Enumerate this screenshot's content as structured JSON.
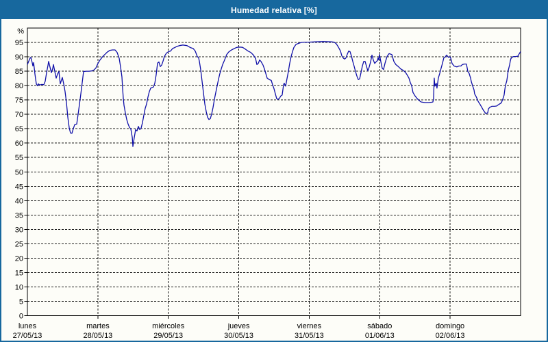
{
  "window": {
    "title": "Humedad relativa [%]",
    "title_bar_color": "#17689e",
    "border_color": "#17689e",
    "background_color": "#fdfdf8"
  },
  "colors": {
    "frame": "#000000",
    "grid": "#1a1a1a",
    "text": "#000000",
    "line": "#0f0fa8"
  },
  "chart_data": {
    "type": "line",
    "title": "Humedad relativa [%]",
    "ylabel": "%",
    "ylim": [
      0,
      100
    ],
    "y_ticks": [
      0,
      5,
      10,
      15,
      20,
      25,
      30,
      35,
      40,
      45,
      50,
      55,
      60,
      65,
      70,
      75,
      80,
      85,
      90,
      95
    ],
    "grid": {
      "horizontal": "dashed",
      "vertical": "dashed at day boundaries"
    },
    "legend": "none",
    "x_axis": {
      "unit": "day",
      "range_days": [
        0,
        7
      ],
      "days": [
        {
          "name": "lunes",
          "date": "27/05/13"
        },
        {
          "name": "martes",
          "date": "28/05/13"
        },
        {
          "name": "miércoles",
          "date": "29/05/13"
        },
        {
          "name": "jueves",
          "date": "30/05/13"
        },
        {
          "name": "viernes",
          "date": "31/05/13"
        },
        {
          "name": "sábado",
          "date": "01/06/13"
        },
        {
          "name": "domingo",
          "date": "02/06/13"
        }
      ]
    },
    "series": [
      {
        "name": "Humedad relativa",
        "color": "#0f0fa8",
        "points": [
          [
            0.0,
            87.3
          ],
          [
            0.019,
            88.5
          ],
          [
            0.039,
            89.6
          ],
          [
            0.049,
            89.8
          ],
          [
            0.068,
            88.0
          ],
          [
            0.078,
            86.8
          ],
          [
            0.088,
            88.0
          ],
          [
            0.107,
            84.0
          ],
          [
            0.126,
            80.6
          ],
          [
            0.146,
            79.9
          ],
          [
            0.156,
            80.6
          ],
          [
            0.175,
            80.2
          ],
          [
            0.204,
            80.4
          ],
          [
            0.233,
            80.3
          ],
          [
            0.253,
            81.5
          ],
          [
            0.272,
            84.5
          ],
          [
            0.292,
            87.0
          ],
          [
            0.301,
            88.4
          ],
          [
            0.321,
            86.4
          ],
          [
            0.34,
            84.5
          ],
          [
            0.36,
            86.0
          ],
          [
            0.369,
            87.3
          ],
          [
            0.389,
            84.9
          ],
          [
            0.408,
            82.6
          ],
          [
            0.428,
            84.0
          ],
          [
            0.447,
            84.9
          ],
          [
            0.467,
            80.6
          ],
          [
            0.486,
            82.1
          ],
          [
            0.496,
            82.8
          ],
          [
            0.515,
            80.6
          ],
          [
            0.535,
            77.9
          ],
          [
            0.554,
            74.1
          ],
          [
            0.574,
            69.0
          ],
          [
            0.593,
            65.4
          ],
          [
            0.612,
            63.5
          ],
          [
            0.632,
            63.4
          ],
          [
            0.651,
            65.0
          ],
          [
            0.671,
            66.4
          ],
          [
            0.7,
            66.6
          ],
          [
            0.719,
            70.0
          ],
          [
            0.739,
            73.5
          ],
          [
            0.758,
            77.1
          ],
          [
            0.778,
            81.0
          ],
          [
            0.797,
            84.9
          ],
          [
            0.836,
            85.0
          ],
          [
            0.875,
            85.0
          ],
          [
            0.914,
            85.1
          ],
          [
            0.943,
            85.4
          ],
          [
            0.972,
            86.1
          ],
          [
            1.001,
            87.7
          ],
          [
            1.031,
            88.9
          ],
          [
            1.069,
            90.1
          ],
          [
            1.099,
            90.8
          ],
          [
            1.137,
            91.7
          ],
          [
            1.167,
            92.2
          ],
          [
            1.206,
            92.4
          ],
          [
            1.244,
            92.4
          ],
          [
            1.274,
            91.5
          ],
          [
            1.303,
            89.5
          ],
          [
            1.322,
            86.5
          ],
          [
            1.342,
            83.0
          ],
          [
            1.351,
            79.0
          ],
          [
            1.361,
            75.5
          ],
          [
            1.371,
            73.2
          ],
          [
            1.39,
            70.5
          ],
          [
            1.41,
            68.2
          ],
          [
            1.429,
            66.6
          ],
          [
            1.449,
            65.5
          ],
          [
            1.468,
            64.9
          ],
          [
            1.488,
            62.0
          ],
          [
            1.497,
            58.8
          ],
          [
            1.517,
            61.9
          ],
          [
            1.536,
            64.7
          ],
          [
            1.556,
            64.2
          ],
          [
            1.575,
            65.8
          ],
          [
            1.594,
            64.7
          ],
          [
            1.614,
            65.2
          ],
          [
            1.633,
            67.1
          ],
          [
            1.653,
            69.7
          ],
          [
            1.672,
            72.1
          ],
          [
            1.692,
            73.6
          ],
          [
            1.711,
            76.0
          ],
          [
            1.731,
            77.9
          ],
          [
            1.75,
            79.1
          ],
          [
            1.789,
            79.5
          ],
          [
            1.808,
            80.8
          ],
          [
            1.828,
            83.8
          ],
          [
            1.847,
            87.8
          ],
          [
            1.867,
            88.2
          ],
          [
            1.886,
            86.6
          ],
          [
            1.906,
            87.1
          ],
          [
            1.925,
            88.5
          ],
          [
            1.944,
            90.1
          ],
          [
            1.974,
            91.3
          ],
          [
            2.003,
            91.8
          ],
          [
            2.032,
            92.0
          ],
          [
            2.061,
            92.9
          ],
          [
            2.09,
            93.2
          ],
          [
            2.12,
            93.6
          ],
          [
            2.158,
            93.9
          ],
          [
            2.207,
            94.1
          ],
          [
            2.265,
            93.9
          ],
          [
            2.314,
            93.2
          ],
          [
            2.353,
            92.9
          ],
          [
            2.382,
            92.0
          ],
          [
            2.411,
            90.1
          ],
          [
            2.431,
            89.6
          ],
          [
            2.44,
            88.5
          ],
          [
            2.46,
            85.5
          ],
          [
            2.479,
            81.5
          ],
          [
            2.499,
            77.5
          ],
          [
            2.518,
            73.6
          ],
          [
            2.538,
            70.9
          ],
          [
            2.557,
            69.0
          ],
          [
            2.576,
            68.2
          ],
          [
            2.596,
            68.5
          ],
          [
            2.615,
            70.1
          ],
          [
            2.635,
            72.4
          ],
          [
            2.654,
            75.2
          ],
          [
            2.674,
            77.6
          ],
          [
            2.693,
            79.9
          ],
          [
            2.713,
            82.3
          ],
          [
            2.732,
            84.2
          ],
          [
            2.751,
            85.8
          ],
          [
            2.771,
            87.3
          ],
          [
            2.79,
            88.4
          ],
          [
            2.81,
            89.6
          ],
          [
            2.829,
            90.8
          ],
          [
            2.858,
            91.7
          ],
          [
            2.897,
            92.4
          ],
          [
            2.936,
            92.9
          ],
          [
            2.975,
            93.3
          ],
          [
            3.014,
            93.4
          ],
          [
            3.053,
            93.3
          ],
          [
            3.092,
            92.7
          ],
          [
            3.131,
            92.0
          ],
          [
            3.17,
            91.5
          ],
          [
            3.208,
            90.6
          ],
          [
            3.238,
            89.4
          ],
          [
            3.257,
            87.3
          ],
          [
            3.276,
            87.7
          ],
          [
            3.296,
            88.9
          ],
          [
            3.315,
            88.4
          ],
          [
            3.344,
            87.1
          ],
          [
            3.364,
            85.8
          ],
          [
            3.383,
            84.2
          ],
          [
            3.403,
            82.6
          ],
          [
            3.432,
            82.1
          ],
          [
            3.461,
            81.8
          ],
          [
            3.48,
            80.3
          ],
          [
            3.5,
            78.9
          ],
          [
            3.519,
            77.1
          ],
          [
            3.539,
            75.4
          ],
          [
            3.558,
            75.2
          ],
          [
            3.578,
            75.6
          ],
          [
            3.597,
            76.4
          ],
          [
            3.616,
            76.7
          ],
          [
            3.636,
            80.3
          ],
          [
            3.645,
            80.8
          ],
          [
            3.665,
            79.8
          ],
          [
            3.684,
            82.3
          ],
          [
            3.704,
            84.9
          ],
          [
            3.723,
            87.7
          ],
          [
            3.743,
            90.1
          ],
          [
            3.762,
            91.7
          ],
          [
            3.781,
            93.2
          ],
          [
            3.811,
            94.3
          ],
          [
            3.84,
            94.6
          ],
          [
            3.888,
            95.0
          ],
          [
            3.937,
            95.1
          ],
          [
            3.995,
            95.1
          ],
          [
            4.083,
            95.2
          ],
          [
            4.2,
            95.3
          ],
          [
            4.317,
            95.2
          ],
          [
            4.356,
            95.1
          ],
          [
            4.385,
            94.5
          ],
          [
            4.414,
            93.4
          ],
          [
            4.443,
            92.0
          ],
          [
            4.463,
            90.3
          ],
          [
            4.482,
            89.6
          ],
          [
            4.502,
            89.2
          ],
          [
            4.521,
            89.6
          ],
          [
            4.54,
            90.9
          ],
          [
            4.56,
            92.0
          ],
          [
            4.579,
            91.8
          ],
          [
            4.599,
            90.3
          ],
          [
            4.618,
            88.4
          ],
          [
            4.637,
            86.8
          ],
          [
            4.657,
            84.9
          ],
          [
            4.676,
            83.3
          ],
          [
            4.696,
            82.1
          ],
          [
            4.715,
            82.3
          ],
          [
            4.735,
            84.5
          ],
          [
            4.754,
            86.8
          ],
          [
            4.774,
            88.4
          ],
          [
            4.793,
            88.4
          ],
          [
            4.812,
            86.8
          ],
          [
            4.832,
            85.1
          ],
          [
            4.851,
            86.5
          ],
          [
            4.871,
            88.2
          ],
          [
            4.89,
            90.6
          ],
          [
            4.91,
            88.9
          ],
          [
            4.929,
            87.7
          ],
          [
            4.948,
            88.2
          ],
          [
            4.968,
            88.7
          ],
          [
            4.977,
            89.6
          ],
          [
            4.987,
            88.9
          ],
          [
            4.997,
            90.8
          ],
          [
            5.016,
            88.4
          ],
          [
            5.036,
            86.0
          ],
          [
            5.055,
            85.6
          ],
          [
            5.075,
            87.7
          ],
          [
            5.104,
            90.1
          ],
          [
            5.133,
            91.1
          ],
          [
            5.172,
            90.8
          ],
          [
            5.201,
            88.4
          ],
          [
            5.23,
            87.3
          ],
          [
            5.269,
            86.5
          ],
          [
            5.298,
            85.8
          ],
          [
            5.327,
            85.4
          ],
          [
            5.366,
            84.6
          ],
          [
            5.395,
            83.5
          ],
          [
            5.415,
            82.6
          ],
          [
            5.434,
            81.1
          ],
          [
            5.454,
            79.9
          ],
          [
            5.473,
            77.6
          ],
          [
            5.502,
            76.4
          ],
          [
            5.531,
            75.5
          ],
          [
            5.56,
            74.8
          ],
          [
            5.589,
            74.3
          ],
          [
            5.638,
            74.1
          ],
          [
            5.696,
            74.1
          ],
          [
            5.735,
            74.2
          ],
          [
            5.755,
            74.3
          ],
          [
            5.764,
            75.2
          ],
          [
            5.774,
            82.6
          ],
          [
            5.784,
            79.8
          ],
          [
            5.803,
            80.8
          ],
          [
            5.813,
            79.1
          ],
          [
            5.832,
            82.6
          ],
          [
            5.852,
            84.2
          ],
          [
            5.871,
            86.0
          ],
          [
            5.891,
            87.7
          ],
          [
            5.91,
            89.6
          ],
          [
            5.93,
            89.9
          ],
          [
            5.949,
            90.6
          ],
          [
            5.978,
            89.8
          ],
          [
            5.998,
            90.0
          ],
          [
            6.007,
            89.6
          ],
          [
            6.027,
            87.7
          ],
          [
            6.056,
            86.8
          ],
          [
            6.095,
            86.5
          ],
          [
            6.124,
            86.8
          ],
          [
            6.153,
            86.8
          ],
          [
            6.173,
            87.3
          ],
          [
            6.202,
            87.5
          ],
          [
            6.231,
            87.5
          ],
          [
            6.251,
            84.9
          ],
          [
            6.27,
            84.2
          ],
          [
            6.29,
            82.6
          ],
          [
            6.3,
            81.4
          ],
          [
            6.319,
            79.9
          ],
          [
            6.339,
            78.5
          ],
          [
            6.348,
            77.1
          ],
          [
            6.368,
            76.2
          ],
          [
            6.387,
            75.2
          ],
          [
            6.397,
            74.5
          ],
          [
            6.426,
            73.4
          ],
          [
            6.445,
            72.6
          ],
          [
            6.465,
            71.7
          ],
          [
            6.484,
            71.0
          ],
          [
            6.504,
            70.3
          ],
          [
            6.533,
            70.5
          ],
          [
            6.543,
            71.9
          ],
          [
            6.562,
            72.4
          ],
          [
            6.591,
            72.8
          ],
          [
            6.63,
            72.8
          ],
          [
            6.659,
            72.9
          ],
          [
            6.688,
            73.4
          ],
          [
            6.727,
            74.0
          ],
          [
            6.746,
            75.2
          ],
          [
            6.766,
            76.7
          ],
          [
            6.775,
            78.5
          ],
          [
            6.785,
            80.1
          ],
          [
            6.804,
            81.6
          ],
          [
            6.814,
            83.4
          ],
          [
            6.824,
            85.2
          ],
          [
            6.843,
            87.1
          ],
          [
            6.853,
            88.5
          ],
          [
            6.863,
            89.4
          ],
          [
            6.882,
            89.9
          ],
          [
            6.902,
            90.1
          ],
          [
            6.931,
            90.1
          ],
          [
            6.96,
            90.2
          ],
          [
            6.98,
            91.0
          ],
          [
            6.999,
            91.8
          ]
        ]
      }
    ]
  }
}
